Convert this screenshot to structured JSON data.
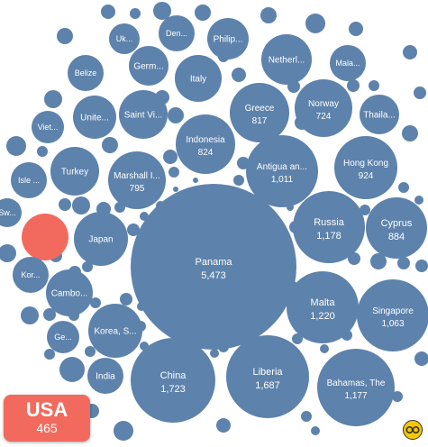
{
  "chart_data": {
    "type": "bubble",
    "colors": {
      "bubble": "#5d82ac",
      "highlight": "#f26a5e",
      "highlight_badge": "#f26a5e"
    },
    "bubbles": [
      {
        "label": "Panama",
        "value": 5473
      },
      {
        "label": "China",
        "value": 1723
      },
      {
        "label": "Liberia",
        "value": 1687
      },
      {
        "label": "Malta",
        "value": 1220
      },
      {
        "label": "Russia",
        "value": 1178
      },
      {
        "label": "Bahamas, The",
        "value": 1177
      },
      {
        "label": "Singapore",
        "value": 1063
      },
      {
        "label": "Antigua an...",
        "value": 1011
      },
      {
        "label": "Hong Kong",
        "value": 924
      },
      {
        "label": "Cyprus",
        "value": 884
      },
      {
        "label": "Indonesia",
        "value": 824
      },
      {
        "label": "Greece",
        "value": 817
      },
      {
        "label": "Marshall I...",
        "value": 795
      },
      {
        "label": "Norway",
        "value": 724
      },
      {
        "label": "Japan",
        "value": null
      },
      {
        "label": "Korea, S...",
        "value": null
      },
      {
        "label": "India",
        "value": null
      },
      {
        "label": "Cambo...",
        "value": null
      },
      {
        "label": "Turkey",
        "value": null
      },
      {
        "label": "Saint Vi...",
        "value": null
      },
      {
        "label": "Italy",
        "value": null
      },
      {
        "label": "Unite...",
        "value": null
      },
      {
        "label": "Netherl...",
        "value": null
      },
      {
        "label": "Thaila...",
        "value": null
      },
      {
        "label": "Germ...",
        "value": null
      },
      {
        "label": "Philip...",
        "value": null
      },
      {
        "label": "Den...",
        "value": null
      },
      {
        "label": "Uk...",
        "value": null
      },
      {
        "label": "Mala...",
        "value": null
      },
      {
        "label": "Belize",
        "value": null
      },
      {
        "label": "Viet...",
        "value": null
      },
      {
        "label": "Isle ...",
        "value": null
      },
      {
        "label": "Sw...",
        "value": null
      },
      {
        "label": "Kor...",
        "value": null
      },
      {
        "label": "Ge...",
        "value": null
      }
    ],
    "highlight": {
      "label": "USA",
      "value": 465
    }
  }
}
